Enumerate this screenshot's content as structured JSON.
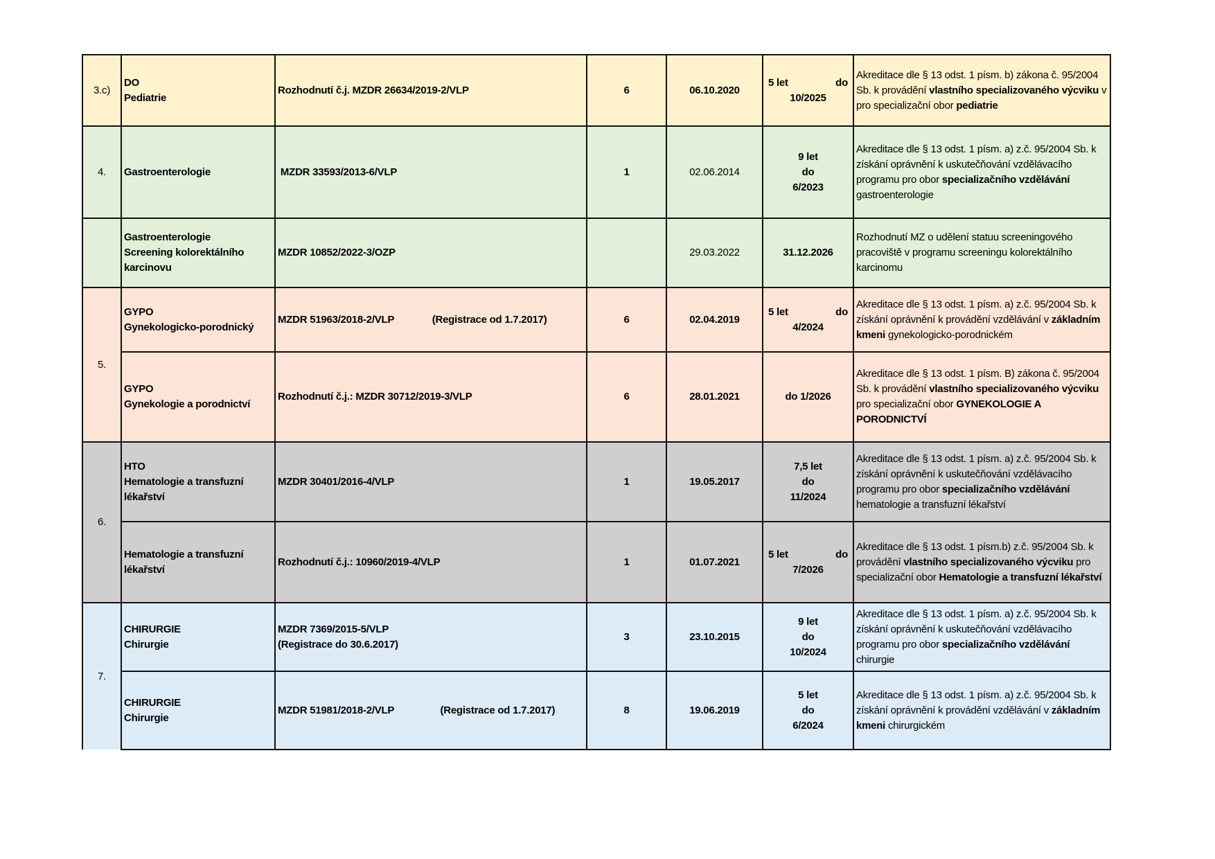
{
  "colors": {
    "pediatrie": "#fff2cc",
    "gastro": "#e2efda",
    "gypo": "#fce4d6",
    "hto": "#d0cece",
    "chirurgie": "#ddebf7",
    "border": "#111111"
  },
  "groups": [
    {
      "number": "3.c)",
      "color": "pediatrie",
      "rows": [
        {
          "dept": [
            "DO",
            "Pediatrie"
          ],
          "decision": "Rozhodnutí č.j. MZDR 26634/2019-2/VLP",
          "count": "6",
          "date": "06.10.2020",
          "date_bold": true,
          "validity": [
            "5 let",
            "do",
            "10/2025"
          ],
          "validity_justified": true,
          "bottom": true,
          "description": [
            {
              "t": "Akreditace dle § 13 odst. 1 písm. b) zákona č. 95/2004 Sb. k provádění "
            },
            {
              "t": "vlastního specializovaného výcviku",
              "b": true
            },
            {
              "t": " v pro specializační obor "
            },
            {
              "t": "pediatrie",
              "b": true
            }
          ]
        }
      ]
    },
    {
      "number": "4.",
      "color": "gastro",
      "rows": [
        {
          "dept": [
            "Gastroenterologie"
          ],
          "decision": " MZDR 33593/2013-6/VLP",
          "count": "1",
          "date": "02.06.2014",
          "date_bold": false,
          "validity": [
            "9 let",
            "do",
            "6/2023"
          ],
          "description": [
            {
              "t": "Akreditace dle § 13 odst. 1 písm. a) z.č. 95/2004 Sb. k získání oprávnění k uskutečňování vzdělávacího programu pro obor "
            },
            {
              "t": "specializačního vzdělávání",
              "b": true
            },
            {
              "t": " gastroenterologie"
            }
          ]
        }
      ]
    },
    {
      "number": "",
      "color": "gastro",
      "rows": [
        {
          "dept": [
            "Gastroenterologie",
            "Screening kolorektálního karcinovu"
          ],
          "decision": "MZDR 10852/2022-3/OZP",
          "count": "",
          "date": "29.03.2022",
          "date_bold": false,
          "validity": [
            "31.12.2026"
          ],
          "description": [
            {
              "t": "Rozhodnutí MZ o udělení statuu screeningového pracoviště v programu screeningu kolorektálního karcinomu"
            }
          ]
        }
      ]
    },
    {
      "number": "5.",
      "color": "gypo",
      "rows": [
        {
          "dept": [
            "GYPO",
            "Gynekologicko-porodnický"
          ],
          "decision": "MZDR 51963/2018-2/VLP              (Registrace od 1.7.2017)",
          "count": "6",
          "date": "02.04.2019",
          "date_bold": true,
          "validity": [
            "5 let",
            "do",
            "4/2024"
          ],
          "validity_justified": true,
          "description": [
            {
              "t": "Akreditace dle § 13 odst. 1 písm. a) z.č. 95/2004 Sb. k získání oprávnění k provádění vzdělávání v "
            },
            {
              "t": "základním kmeni",
              "b": true
            },
            {
              "t": " gynekologicko-porodnickém"
            }
          ]
        },
        {
          "dept": [
            "GYPO",
            "Gynekologie a porodnictví"
          ],
          "decision": "Rozhodnutí č.j.: MZDR 30712/2019-3/VLP",
          "count": "6",
          "date": "28.01.2021",
          "date_bold": true,
          "validity": [
            "do 1/2026"
          ],
          "description": [
            {
              "t": "Akreditace dle § 13 odst. 1 písm. B) zákona č. 95/2004 Sb. k provádění "
            },
            {
              "t": "vlastního specializovaného výcviku",
              "b": true
            },
            {
              "t": " pro specializační obor "
            },
            {
              "t": "GYNEKOLOGIE A PORODNICTVÍ",
              "b": true
            }
          ]
        }
      ]
    },
    {
      "number": "6.",
      "color": "hto",
      "rows": [
        {
          "dept": [
            "HTO",
            "Hematologie a transfuzní lékařství"
          ],
          "decision": "MZDR 30401/2016-4/VLP",
          "count": "1",
          "date": "19.05.2017",
          "date_bold": true,
          "validity": [
            "7,5 let",
            "do",
            "11/2024"
          ],
          "description": [
            {
              "t": "Akreditace dle § 13 odst. 1 písm. a) z.č. 95/2004 Sb. k získání oprávnění k uskutečňování vzdělávacího programu pro obor "
            },
            {
              "t": "specializačního vzdělávání",
              "b": true
            },
            {
              "t": " hematologie a transfuzní lékařství"
            }
          ]
        },
        {
          "dept": [
            "Hematologie a transfuzní lékařství"
          ],
          "decision": "Rozhodnutí č.j.: 10960/2019-4/VLP",
          "count": "1",
          "date": "01.07.2021",
          "date_bold": true,
          "validity": [
            "5 let",
            "do",
            "7/2026"
          ],
          "validity_justified": true,
          "description": [
            {
              "t": "Akreditace dle § 13 odst. 1 písm.b) z.č. 95/2004 Sb. k provádění "
            },
            {
              "t": "vlastního specializovaného výcviku",
              "b": true
            },
            {
              "t": " pro specializační obor "
            },
            {
              "t": "Hematologie a transfuzní lékařství",
              "b": true
            }
          ]
        }
      ]
    },
    {
      "number": "7.",
      "color": "chirurgie",
      "open_bottom": true,
      "rows": [
        {
          "dept": [
            "CHIRURGIE",
            "Chirurgie"
          ],
          "decision": "MZDR 7369/2015-5/VLP\n(Registrace do 30.6.2017)",
          "count": "3",
          "date": "23.10.2015",
          "date_bold": true,
          "validity": [
            "9 let",
            "do",
            "10/2024"
          ],
          "description": [
            {
              "t": "Akreditace dle § 13 odst. 1 písm. a) z.č. 95/2004 Sb. k získání oprávnění k uskutečňování vzdělávacího programu pro obor "
            },
            {
              "t": "specializačního vzdělávání",
              "b": true
            },
            {
              "t": " chirurgie"
            }
          ]
        },
        {
          "dept": [
            "CHIRURGIE",
            "Chirurgie"
          ],
          "decision": "MZDR 51981/2018-2/VLP                 (Registrace od 1.7.2017)",
          "count": "8",
          "date": "19.06.2019",
          "date_bold": true,
          "validity": [
            "5 let",
            "do",
            "6/2024"
          ],
          "description": [
            {
              "t": "Akreditace dle § 13 odst. 1 písm. a) z.č. 95/2004 Sb. k získání oprávnění k provádění vzdělávání v "
            },
            {
              "t": "základním kmeni",
              "b": true
            },
            {
              "t": " chirurgickém"
            }
          ]
        }
      ]
    }
  ]
}
